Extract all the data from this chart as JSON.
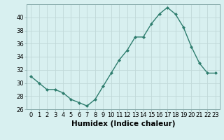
{
  "x": [
    0,
    1,
    2,
    3,
    4,
    5,
    6,
    7,
    8,
    9,
    10,
    11,
    12,
    13,
    14,
    15,
    16,
    17,
    18,
    19,
    20,
    21,
    22,
    23
  ],
  "y": [
    31,
    30,
    29,
    29,
    28.5,
    27.5,
    27,
    26.5,
    27.5,
    29.5,
    31.5,
    33.5,
    35,
    37,
    37,
    39,
    40.5,
    41.5,
    40.5,
    38.5,
    35.5,
    33,
    31.5,
    31.5
  ],
  "line_color": "#2e7d6e",
  "marker": "D",
  "marker_size": 2.0,
  "bg_color": "#d8f0f0",
  "grid_color": "#c0d8d8",
  "xlabel": "Humidex (Indice chaleur)",
  "xlim": [
    -0.5,
    23.5
  ],
  "ylim": [
    26,
    42
  ],
  "yticks": [
    26,
    28,
    30,
    32,
    34,
    36,
    38,
    40
  ],
  "xticks": [
    0,
    1,
    2,
    3,
    4,
    5,
    6,
    7,
    8,
    9,
    10,
    11,
    12,
    13,
    14,
    15,
    16,
    17,
    18,
    19,
    20,
    21,
    22,
    23
  ],
  "tick_fontsize": 6,
  "xlabel_fontsize": 7.5,
  "linewidth": 1.0
}
